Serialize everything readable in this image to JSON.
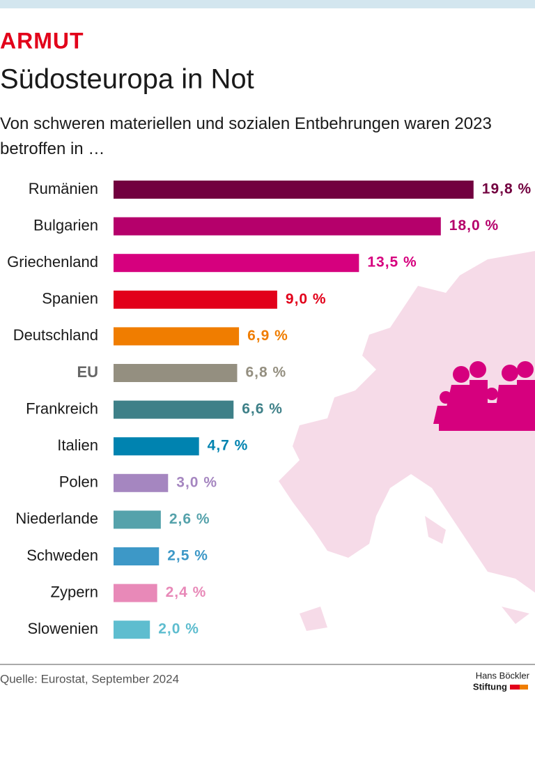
{
  "chart_data": {
    "type": "bar",
    "orientation": "horizontal",
    "kicker": "ARMUT",
    "title": "Südosteuropa in Not",
    "subtitle": "Von schweren materiellen und sozialen Entbehrungen waren 2023 betroffen in …",
    "categories": [
      "Rumänien",
      "Bulgarien",
      "Griechenland",
      "Spanien",
      "Deutschland",
      "EU",
      "Frankreich",
      "Italien",
      "Polen",
      "Niederlande",
      "Schweden",
      "Zypern",
      "Slowenien"
    ],
    "values": [
      19.8,
      18.0,
      13.5,
      9.0,
      6.9,
      6.8,
      6.6,
      4.7,
      3.0,
      2.6,
      2.5,
      2.4,
      2.0
    ],
    "value_labels": [
      "19,8 %",
      "18,0 %",
      "13,5 %",
      "9,0 %",
      "6,9 %",
      "6,8 %",
      "6,6 %",
      "4,7 %",
      "3,0 %",
      "2,6 %",
      "2,5 %",
      "2,4 %",
      "2,0 %"
    ],
    "colors": [
      "#72003f",
      "#b5006b",
      "#d6007e",
      "#e2001a",
      "#f07d00",
      "#948f80",
      "#3e8088",
      "#0083b0",
      "#a586c0",
      "#55a2ab",
      "#3d98c7",
      "#e889b8",
      "#5ebdcf"
    ],
    "source": "Quelle: Eurostat, September 2024",
    "logo": [
      "Hans Böckler",
      "Stiftung"
    ]
  }
}
